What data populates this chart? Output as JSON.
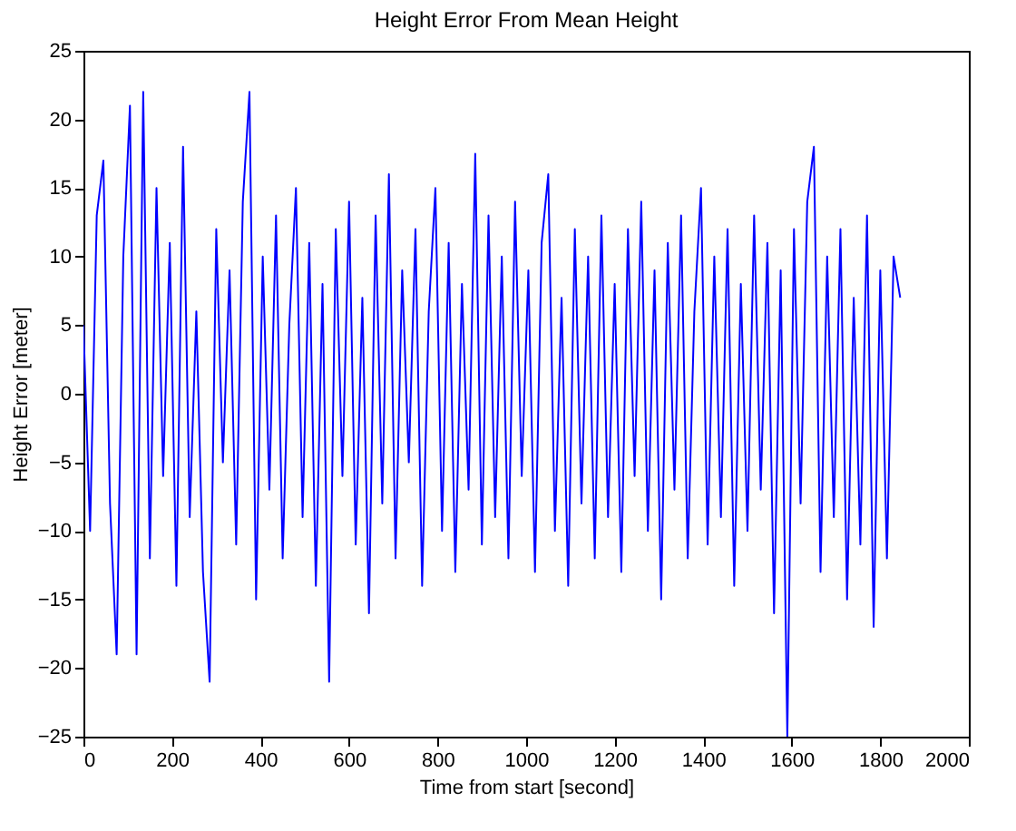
{
  "chart_data": {
    "type": "line",
    "title": "Height Error From Mean Height",
    "xlabel": "Time from start [second]",
    "ylabel": "Height Error [meter]",
    "x": [
      0,
      15,
      30,
      45,
      60,
      75,
      90,
      105,
      120,
      135,
      150,
      165,
      180,
      195,
      210,
      225,
      240,
      255,
      270,
      285,
      300,
      315,
      330,
      345,
      360,
      375,
      390,
      405,
      420,
      435,
      450,
      465,
      480,
      495,
      510,
      525,
      540,
      555,
      570,
      585,
      600,
      615,
      630,
      645,
      660,
      675,
      690,
      705,
      720,
      735,
      750,
      765,
      780,
      795,
      810,
      825,
      840,
      855,
      870,
      885,
      900,
      915,
      930,
      945,
      960,
      975,
      990,
      1005,
      1020,
      1035,
      1050,
      1065,
      1080,
      1095,
      1110,
      1125,
      1140,
      1155,
      1170,
      1185,
      1200,
      1215,
      1230,
      1245,
      1260,
      1275,
      1290,
      1305,
      1320,
      1335,
      1350,
      1365,
      1380,
      1395,
      1410,
      1425,
      1440,
      1455,
      1470,
      1485,
      1500,
      1515,
      1530,
      1545,
      1560,
      1575,
      1590,
      1605,
      1620,
      1635,
      1650,
      1665,
      1680,
      1695,
      1710,
      1725,
      1740,
      1755,
      1770,
      1785,
      1800,
      1815,
      1830,
      1845
    ],
    "series": [
      {
        "color": "#0000ff",
        "values": [
          5,
          -10,
          13,
          17,
          -8,
          -19,
          10,
          21,
          -19,
          22,
          -12,
          15,
          -6,
          11,
          -14,
          18,
          -9,
          6,
          -13,
          -21,
          12,
          -5,
          9,
          -11,
          14,
          22,
          -15,
          10,
          -7,
          13,
          -12,
          5,
          15,
          -9,
          11,
          -14,
          8,
          -21,
          12,
          -6,
          14,
          -11,
          7,
          -16,
          13,
          -8,
          16,
          -12,
          9,
          -5,
          12,
          -14,
          6,
          15,
          -10,
          11,
          -13,
          8,
          -7,
          17.5,
          -11,
          13,
          -9,
          10,
          -12,
          14,
          -6,
          9,
          -13,
          11,
          16,
          -10,
          7,
          -14,
          12,
          -8,
          10,
          -12,
          13,
          -9,
          8,
          -13,
          12,
          -6,
          14,
          -10,
          9,
          -15,
          11,
          -7,
          13,
          -12,
          6,
          15,
          -11,
          10,
          -9,
          12,
          -14,
          8,
          -10,
          13,
          -7,
          11,
          -16,
          9,
          -25,
          12,
          -8,
          14,
          18,
          -13,
          10,
          -9,
          12,
          -15,
          7,
          -11,
          13,
          -17,
          9,
          -12,
          10,
          7
        ]
      }
    ],
    "xlim": [
      0,
      2000
    ],
    "xticks": [
      0,
      200,
      400,
      600,
      800,
      1000,
      1200,
      1400,
      1600,
      1800,
      2000
    ],
    "ylim": [
      -25,
      25
    ],
    "yticks": [
      -25,
      -20,
      -15,
      -10,
      -5,
      0,
      5,
      10,
      15,
      20,
      25
    ],
    "grid": false,
    "marker": "none",
    "line_style": "solid"
  }
}
